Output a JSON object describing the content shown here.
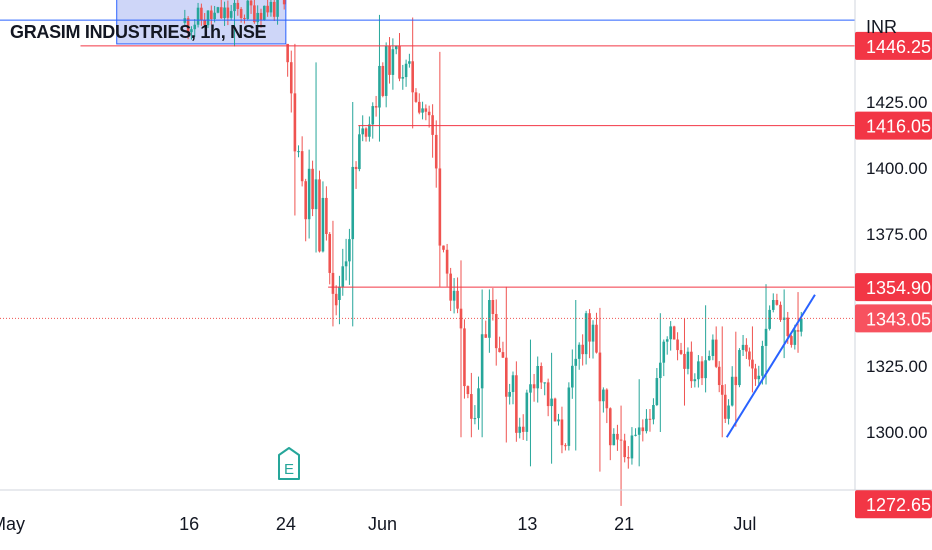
{
  "title": "GRASIM INDUSTRIES, 1h, NSE",
  "currency": "INR",
  "colors": {
    "up": "#26a69a",
    "down": "#ef5350",
    "level_line": "#f23645",
    "trend_line": "#2962ff",
    "zone_fill": "#c5cff7",
    "zone_border": "#2962ff",
    "axis_text": "#131722",
    "earnings_icon": "#26a69a"
  },
  "chart_data": {
    "type": "candlestick",
    "title": "GRASIM INDUSTRIES, 1h, NSE",
    "ylim": [
      1270,
      1468
    ],
    "y_ticks": [
      "1425.00",
      "1400.00",
      "1375.00",
      "1325.00",
      "1300.00"
    ],
    "x_ticks": [
      "May",
      "16",
      "24",
      "Jun",
      "13",
      "21",
      "Jul"
    ],
    "x_tick_day_index": [
      0,
      15,
      23,
      31,
      43,
      51,
      61
    ],
    "x_range_days": [
      0,
      69
    ],
    "last_price": 1343.05,
    "price_labels": [
      {
        "text": "1446.25",
        "value": 1446.25,
        "style": "level"
      },
      {
        "text": "1416.05",
        "value": 1416.05,
        "style": "level"
      },
      {
        "text": "1354.90",
        "value": 1354.9,
        "style": "level"
      },
      {
        "text": "1343.05",
        "value": 1343.05,
        "style": "last"
      },
      {
        "text": "1272.65",
        "value": 1272.65,
        "style": "level"
      }
    ],
    "horizontal_levels": [
      {
        "value": 1446.25,
        "from_day": 6
      },
      {
        "value": 1416.05,
        "from_day": 29
      },
      {
        "value": 1354.9,
        "from_day": 26.5
      }
    ],
    "zone": {
      "from_day": 9,
      "to_day": 23,
      "low": 1447,
      "high": 1475
    },
    "top_line": 1456,
    "trend_line": [
      {
        "day": 59.5,
        "value": 1298
      },
      {
        "day": 66.8,
        "value": 1352
      }
    ],
    "earnings_marker_day": 25,
    "candles_segments": [
      {
        "from_day": 14.5,
        "to_day": 23,
        "start": 1455,
        "end": 1462,
        "lo": 1446,
        "hi": 1475
      },
      {
        "from_day": 23,
        "to_day": 24.5,
        "start": 1447,
        "end": 1395,
        "lo": 1382,
        "hi": 1447
      },
      {
        "from_day": 24.5,
        "to_day": 26.5,
        "start": 1395,
        "end": 1375,
        "lo": 1368,
        "hi": 1440
      },
      {
        "from_day": 26.5,
        "to_day": 27.3,
        "start": 1375,
        "end": 1348,
        "lo": 1340,
        "hi": 1380
      },
      {
        "from_day": 27.3,
        "to_day": 29.5,
        "start": 1350,
        "end": 1415,
        "lo": 1340,
        "hi": 1425
      },
      {
        "from_day": 29.5,
        "to_day": 32,
        "start": 1415,
        "end": 1445,
        "lo": 1410,
        "hi": 1458
      },
      {
        "from_day": 32,
        "to_day": 35,
        "start": 1445,
        "end": 1420,
        "lo": 1415,
        "hi": 1457
      },
      {
        "from_day": 35,
        "to_day": 36.5,
        "start": 1420,
        "end": 1360,
        "lo": 1355,
        "hi": 1444
      },
      {
        "from_day": 36.5,
        "to_day": 38.5,
        "start": 1360,
        "end": 1305,
        "lo": 1298,
        "hi": 1365
      },
      {
        "from_day": 38.5,
        "to_day": 40,
        "start": 1305,
        "end": 1350,
        "lo": 1298,
        "hi": 1354
      },
      {
        "from_day": 40,
        "to_day": 42.5,
        "start": 1350,
        "end": 1302,
        "lo": 1296,
        "hi": 1355
      },
      {
        "from_day": 42.5,
        "to_day": 44,
        "start": 1302,
        "end": 1325,
        "lo": 1287,
        "hi": 1335
      },
      {
        "from_day": 44,
        "to_day": 46,
        "start": 1325,
        "end": 1295,
        "lo": 1288,
        "hi": 1330
      },
      {
        "from_day": 46,
        "to_day": 48,
        "start": 1295,
        "end": 1345,
        "lo": 1293,
        "hi": 1350
      },
      {
        "from_day": 48,
        "to_day": 50,
        "start": 1345,
        "end": 1295,
        "lo": 1285,
        "hi": 1347
      },
      {
        "from_day": 50,
        "to_day": 51.5,
        "start": 1295,
        "end": 1290,
        "lo": 1272,
        "hi": 1310
      },
      {
        "from_day": 51.5,
        "to_day": 53,
        "start": 1290,
        "end": 1305,
        "lo": 1287,
        "hi": 1320
      },
      {
        "from_day": 53,
        "to_day": 55,
        "start": 1305,
        "end": 1340,
        "lo": 1300,
        "hi": 1345
      },
      {
        "from_day": 55,
        "to_day": 57,
        "start": 1340,
        "end": 1320,
        "lo": 1310,
        "hi": 1343
      },
      {
        "from_day": 57,
        "to_day": 58.5,
        "start": 1320,
        "end": 1335,
        "lo": 1315,
        "hi": 1348
      },
      {
        "from_day": 58.5,
        "to_day": 59.5,
        "start": 1335,
        "end": 1305,
        "lo": 1298,
        "hi": 1340
      },
      {
        "from_day": 59.5,
        "to_day": 61,
        "start": 1305,
        "end": 1333,
        "lo": 1302,
        "hi": 1338
      },
      {
        "from_day": 61,
        "to_day": 62,
        "start": 1333,
        "end": 1320,
        "lo": 1315,
        "hi": 1340
      },
      {
        "from_day": 62,
        "to_day": 63.5,
        "start": 1320,
        "end": 1350,
        "lo": 1318,
        "hi": 1356
      },
      {
        "from_day": 63.5,
        "to_day": 65,
        "start": 1350,
        "end": 1333,
        "lo": 1328,
        "hi": 1354
      },
      {
        "from_day": 65,
        "to_day": 65.8,
        "start": 1333,
        "end": 1343,
        "lo": 1330,
        "hi": 1353
      }
    ]
  }
}
